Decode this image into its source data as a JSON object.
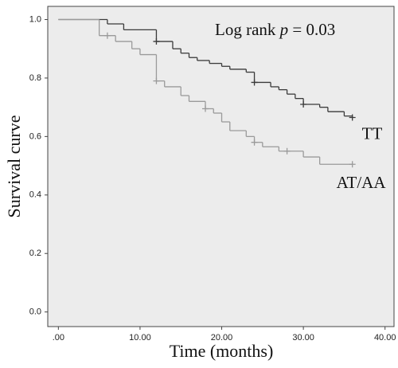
{
  "chart_data": {
    "type": "km",
    "annotation": {
      "prefix": "Log rank",
      "stat": "p",
      "value": "= 0.03"
    },
    "x_label": "Time (months)",
    "y_label": "Survival curve",
    "xlim": [
      -1.3,
      41.1
    ],
    "ylim": [
      -0.05,
      1.045
    ],
    "xticks": [
      {
        "value": 0,
        "label": ".00"
      },
      {
        "value": 10,
        "label": "10.00"
      },
      {
        "value": 20,
        "label": "20.00"
      },
      {
        "value": 30,
        "label": "30.00"
      },
      {
        "value": 40,
        "label": "40.00"
      }
    ],
    "yticks": [
      {
        "value": 0,
        "label": "0.0"
      },
      0.2,
      0.4,
      0.6,
      0.8,
      {
        "value": 1,
        "label": "1.0"
      }
    ],
    "background": "#ececec",
    "series": [
      {
        "name": "TT",
        "color": "#3a3a3a",
        "x": [
          0,
          6,
          8,
          12,
          14,
          15,
          16,
          17,
          18.5,
          20,
          21,
          23,
          24,
          26,
          27,
          28,
          29,
          30,
          32,
          33,
          35,
          36
        ],
        "values": [
          1.0,
          0.985,
          0.965,
          0.925,
          0.9,
          0.885,
          0.87,
          0.86,
          0.85,
          0.84,
          0.83,
          0.82,
          0.785,
          0.77,
          0.76,
          0.745,
          0.73,
          0.71,
          0.7,
          0.685,
          0.67,
          0.665
        ],
        "censor_x": [
          12,
          24,
          30,
          36
        ],
        "censor_values": [
          0.925,
          0.785,
          0.71,
          0.665
        ]
      },
      {
        "name": "AT/AA",
        "color": "#9a9a9a",
        "x": [
          0,
          5,
          7,
          9,
          10,
          12,
          13,
          15,
          16,
          18,
          19,
          20,
          21,
          23,
          24,
          25,
          27,
          30,
          32,
          36
        ],
        "values": [
          1.0,
          0.945,
          0.925,
          0.9,
          0.88,
          0.79,
          0.77,
          0.74,
          0.72,
          0.695,
          0.68,
          0.65,
          0.62,
          0.6,
          0.58,
          0.565,
          0.55,
          0.53,
          0.505,
          0.505
        ],
        "censor_x": [
          6,
          12,
          18,
          24,
          28,
          36
        ],
        "censor_values": [
          0.945,
          0.79,
          0.695,
          0.58,
          0.55,
          0.505
        ]
      }
    ]
  }
}
